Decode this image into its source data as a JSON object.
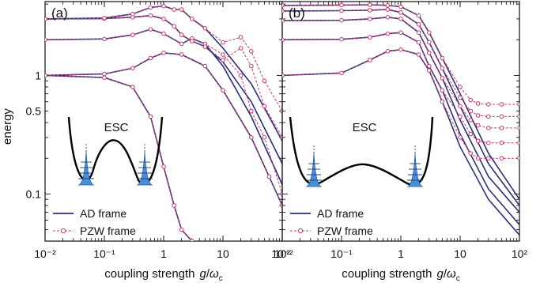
{
  "figure": {
    "ylabel": "energy",
    "xlabel_prefix": "coupling strength",
    "xlabel_symbol_g": "g",
    "xlabel_slash": "/",
    "xlabel_symbol_omega": "ω",
    "xlabel_subscript": "c"
  },
  "colors": {
    "ad": "#2b2f7a",
    "pzw": "#c8376a",
    "axis": "#111111"
  },
  "chart_data": [
    {
      "type": "line",
      "panel": "(a)",
      "inset_label": "ESC",
      "inset_icon": "double-well-potential",
      "xscale": "log",
      "yscale": "log",
      "xlim": [
        0.01,
        100
      ],
      "ylim": [
        0.04,
        4.2
      ],
      "xticks": [
        "10⁻²",
        "10⁻¹",
        "1",
        "10",
        "10²"
      ],
      "yticks": [
        "0.1",
        "0.5",
        "1"
      ],
      "legend_placement": "bottom-left",
      "legend": [
        "AD frame",
        "PZW frame"
      ],
      "series": [
        {
          "name": "AD frame",
          "level": 1,
          "x": [
            0.01,
            0.1,
            0.3,
            0.6,
            1,
            1.5,
            2,
            3
          ],
          "y": [
            1.0,
            0.96,
            0.8,
            0.45,
            0.17,
            0.08,
            0.05,
            0.04
          ]
        },
        {
          "name": "AD frame",
          "level": 2,
          "x": [
            0.01,
            0.1,
            0.3,
            0.6,
            1,
            2,
            5,
            10,
            30,
            60,
            100
          ],
          "y": [
            1.0,
            1.03,
            1.15,
            1.4,
            1.55,
            1.5,
            1.2,
            0.75,
            0.3,
            0.14,
            0.08
          ]
        },
        {
          "name": "AD frame",
          "level": 3,
          "x": [
            0.01,
            0.1,
            0.3,
            0.6,
            1,
            2,
            3,
            5,
            10,
            30,
            100
          ],
          "y": [
            2.0,
            2.03,
            2.2,
            2.45,
            2.25,
            1.85,
            2.05,
            1.85,
            1.2,
            0.45,
            0.12
          ]
        },
        {
          "name": "AD frame",
          "level": 4,
          "x": [
            0.01,
            0.1,
            0.3,
            0.6,
            1,
            1.5,
            2,
            3,
            5,
            10,
            30,
            100
          ],
          "y": [
            3.0,
            3.02,
            3.1,
            3.2,
            3.0,
            2.6,
            2.2,
            1.95,
            1.75,
            1.3,
            0.6,
            0.18
          ]
        },
        {
          "name": "AD frame",
          "level": 5,
          "x": [
            0.01,
            0.1,
            0.3,
            0.6,
            1,
            1.5,
            2,
            3,
            5,
            10,
            30,
            100
          ],
          "y": [
            3.0,
            3.05,
            3.3,
            3.75,
            3.85,
            3.6,
            3.6,
            3.0,
            2.5,
            1.7,
            0.85,
            0.28
          ]
        },
        {
          "name": "PZW frame",
          "level": 1,
          "x": [
            0.01,
            0.1,
            0.3,
            0.6,
            1,
            1.5,
            2,
            3
          ],
          "y": [
            1.0,
            0.96,
            0.8,
            0.45,
            0.17,
            0.08,
            0.05,
            0.04
          ]
        },
        {
          "name": "PZW frame",
          "level": 2,
          "x": [
            0.01,
            0.1,
            0.3,
            0.6,
            1,
            2,
            5,
            10,
            30,
            60,
            100
          ],
          "y": [
            1.0,
            1.03,
            1.15,
            1.4,
            1.55,
            1.5,
            1.2,
            0.75,
            0.3,
            0.14,
            0.08
          ]
        },
        {
          "name": "PZW frame",
          "level": 3,
          "x": [
            0.01,
            0.1,
            0.3,
            0.6,
            1,
            2,
            3,
            5,
            10,
            20,
            30,
            50,
            100
          ],
          "y": [
            2.0,
            2.03,
            2.2,
            2.45,
            2.25,
            1.85,
            2.05,
            1.85,
            1.5,
            1.0,
            0.5,
            0.3,
            0.1
          ]
        },
        {
          "name": "PZW frame",
          "level": 4,
          "x": [
            0.01,
            0.1,
            0.3,
            0.6,
            1,
            1.5,
            2,
            3,
            5,
            10,
            20,
            30,
            50,
            100
          ],
          "y": [
            3.0,
            3.02,
            3.1,
            3.2,
            3.0,
            2.6,
            2.2,
            1.95,
            1.75,
            1.35,
            1.7,
            1.2,
            0.55,
            0.3
          ]
        },
        {
          "name": "PZW frame",
          "level": 5,
          "x": [
            0.01,
            0.1,
            0.3,
            0.6,
            1,
            1.5,
            2,
            3,
            5,
            10,
            20,
            30,
            50,
            100
          ],
          "y": [
            3.0,
            3.05,
            3.3,
            3.75,
            3.85,
            3.6,
            3.6,
            3.0,
            2.5,
            1.9,
            2.1,
            1.6,
            0.9,
            0.5
          ]
        }
      ]
    },
    {
      "type": "line",
      "panel": "(b)",
      "inset_label": "ESC",
      "inset_icon": "double-well-potential",
      "xscale": "log",
      "yscale": "log",
      "xlim": [
        0.01,
        100
      ],
      "ylim": [
        0.04,
        4.2
      ],
      "xticks": [
        "10⁻²",
        "10⁻¹",
        "1",
        "10",
        "10²"
      ],
      "yticks": [],
      "legend_placement": "bottom-left",
      "legend": [
        "AD frame",
        "PZW frame"
      ],
      "series": [
        {
          "name": "AD frame",
          "level": 1,
          "x": [
            0.01,
            0.1,
            0.3,
            0.6,
            1,
            2,
            3,
            5,
            10,
            30,
            100
          ],
          "y": [
            1.0,
            1.05,
            1.35,
            1.6,
            1.65,
            1.5,
            1.1,
            0.6,
            0.25,
            0.09,
            0.045
          ]
        },
        {
          "name": "AD frame",
          "level": 2,
          "x": [
            0.01,
            0.1,
            0.3,
            0.6,
            1,
            2,
            3,
            5,
            10,
            30,
            100
          ],
          "y": [
            2.0,
            2.02,
            2.1,
            2.25,
            2.3,
            1.9,
            1.2,
            0.75,
            0.32,
            0.11,
            0.055
          ]
        },
        {
          "name": "AD frame",
          "level": 3,
          "x": [
            0.01,
            0.1,
            0.3,
            0.6,
            1,
            2,
            3,
            5,
            10,
            30,
            100
          ],
          "y": [
            2.9,
            2.92,
            3.0,
            3.1,
            3.0,
            2.3,
            1.55,
            0.95,
            0.42,
            0.14,
            0.07
          ]
        },
        {
          "name": "AD frame",
          "level": 4,
          "x": [
            0.01,
            0.1,
            0.3,
            0.6,
            1,
            2,
            3,
            5,
            10,
            30,
            100
          ],
          "y": [
            3.5,
            3.52,
            3.55,
            3.6,
            3.4,
            2.7,
            1.9,
            1.15,
            0.55,
            0.18,
            0.08
          ]
        },
        {
          "name": "AD frame",
          "level": 5,
          "x": [
            0.01,
            0.1,
            0.3,
            0.6,
            1,
            2,
            3,
            5,
            10,
            30,
            100
          ],
          "y": [
            3.9,
            3.92,
            3.95,
            3.9,
            3.8,
            3.2,
            2.3,
            1.4,
            0.7,
            0.22,
            0.09
          ]
        },
        {
          "name": "PZW frame",
          "level": 1,
          "x": [
            0.01,
            0.1,
            0.3,
            0.6,
            1,
            2,
            3,
            5,
            10,
            15,
            20,
            30,
            50,
            100
          ],
          "y": [
            1.0,
            1.05,
            1.35,
            1.6,
            1.65,
            1.5,
            1.1,
            0.6,
            0.3,
            0.22,
            0.2,
            0.2,
            0.2,
            0.2
          ]
        },
        {
          "name": "PZW frame",
          "level": 2,
          "x": [
            0.01,
            0.1,
            0.3,
            0.6,
            1,
            2,
            3,
            5,
            10,
            15,
            20,
            30,
            50,
            100
          ],
          "y": [
            2.0,
            2.02,
            2.1,
            2.25,
            2.3,
            1.9,
            1.2,
            0.75,
            0.45,
            0.32,
            0.28,
            0.27,
            0.27,
            0.27
          ]
        },
        {
          "name": "PZW frame",
          "level": 3,
          "x": [
            0.01,
            0.1,
            0.3,
            0.6,
            1,
            2,
            3,
            5,
            10,
            15,
            20,
            30,
            50,
            100
          ],
          "y": [
            2.9,
            2.92,
            3.0,
            3.1,
            3.0,
            2.3,
            1.55,
            0.95,
            0.55,
            0.42,
            0.38,
            0.36,
            0.36,
            0.36
          ]
        },
        {
          "name": "PZW frame",
          "level": 4,
          "x": [
            0.01,
            0.1,
            0.3,
            0.6,
            1,
            2,
            3,
            5,
            10,
            15,
            20,
            30,
            50,
            100
          ],
          "y": [
            3.5,
            3.52,
            3.55,
            3.6,
            3.4,
            2.7,
            1.9,
            1.15,
            0.65,
            0.5,
            0.46,
            0.45,
            0.45,
            0.45
          ]
        },
        {
          "name": "PZW frame",
          "level": 5,
          "x": [
            0.01,
            0.1,
            0.3,
            0.6,
            1,
            2,
            3,
            5,
            10,
            15,
            20,
            30,
            50,
            100
          ],
          "y": [
            3.9,
            3.92,
            3.95,
            3.9,
            3.8,
            3.2,
            2.3,
            1.4,
            0.8,
            0.62,
            0.58,
            0.57,
            0.57,
            0.57
          ]
        }
      ]
    }
  ]
}
